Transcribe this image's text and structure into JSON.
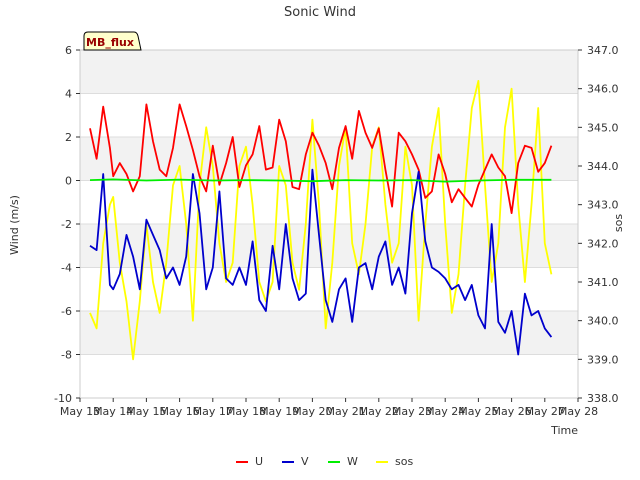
{
  "chart_data": {
    "type": "line",
    "title": "Sonic Wind",
    "badge": "MB_flux",
    "xlabel": "Time",
    "ylabel": "Wind (m/s)",
    "y2label": "sos",
    "ylim": [
      -10,
      6
    ],
    "y2lim": [
      338.0,
      347.0
    ],
    "xlim": [
      13,
      28
    ],
    "yticks": [
      -10,
      -8,
      -6,
      -4,
      -2,
      0,
      2,
      4,
      6
    ],
    "y2ticks": [
      "338.0",
      "339.0",
      "340.0",
      "341.0",
      "342.0",
      "343.0",
      "344.0",
      "345.0",
      "346.0",
      "347.0"
    ],
    "xticks": [
      {
        "v": 13,
        "label": "May 13"
      },
      {
        "v": 14,
        "label": "May 14"
      },
      {
        "v": 15,
        "label": "May 15"
      },
      {
        "v": 16,
        "label": "May 16"
      },
      {
        "v": 17,
        "label": "May 17"
      },
      {
        "v": 18,
        "label": "May 18"
      },
      {
        "v": 19,
        "label": "May 19"
      },
      {
        "v": 20,
        "label": "May 20"
      },
      {
        "v": 21,
        "label": "May 21"
      },
      {
        "v": 22,
        "label": "May 22"
      },
      {
        "v": 23,
        "label": "May 23"
      },
      {
        "v": 24,
        "label": "May 24"
      },
      {
        "v": 25,
        "label": "May 25"
      },
      {
        "v": 26,
        "label": "May 26"
      },
      {
        "v": 27,
        "label": "May 27"
      },
      {
        "v": 28,
        "label": "May 28"
      }
    ],
    "series": [
      {
        "name": "U",
        "color": "#ff0000",
        "axis": "left",
        "x": [
          13.3,
          13.5,
          13.7,
          13.9,
          14.0,
          14.2,
          14.4,
          14.6,
          14.8,
          15.0,
          15.2,
          15.4,
          15.6,
          15.8,
          16.0,
          16.2,
          16.4,
          16.6,
          16.8,
          17.0,
          17.2,
          17.4,
          17.6,
          17.8,
          18.0,
          18.2,
          18.4,
          18.6,
          18.8,
          19.0,
          19.2,
          19.4,
          19.6,
          19.8,
          20.0,
          20.2,
          20.4,
          20.6,
          20.8,
          21.0,
          21.2,
          21.4,
          21.6,
          21.8,
          22.0,
          22.2,
          22.4,
          22.6,
          22.8,
          23.0,
          23.2,
          23.4,
          23.6,
          23.8,
          24.0,
          24.2,
          24.4,
          24.6,
          24.8,
          25.0,
          25.2,
          25.4,
          25.6,
          25.8,
          26.0,
          26.2,
          26.4,
          26.6,
          26.8,
          27.0,
          27.2
        ],
        "y": [
          2.4,
          1.0,
          3.4,
          1.5,
          0.2,
          0.8,
          0.3,
          -0.5,
          0.2,
          3.5,
          1.8,
          0.5,
          0.2,
          1.5,
          3.5,
          2.5,
          1.4,
          0.2,
          -0.5,
          1.6,
          -0.2,
          0.8,
          2.0,
          -0.3,
          0.7,
          1.2,
          2.5,
          0.5,
          0.6,
          2.8,
          1.8,
          -0.3,
          -0.4,
          1.2,
          2.2,
          1.6,
          0.8,
          -0.4,
          1.5,
          2.5,
          1.0,
          3.2,
          2.2,
          1.5,
          2.4,
          0.5,
          -1.2,
          2.2,
          1.8,
          1.2,
          0.5,
          -0.8,
          -0.5,
          1.2,
          0.3,
          -1.0,
          -0.4,
          -0.8,
          -1.2,
          -0.2,
          0.5,
          1.2,
          0.6,
          0.2,
          -1.5,
          0.8,
          1.6,
          1.5,
          0.4,
          0.8,
          1.6
        ]
      },
      {
        "name": "V",
        "color": "#0000cc",
        "axis": "left",
        "x": [
          13.3,
          13.5,
          13.7,
          13.9,
          14.0,
          14.2,
          14.4,
          14.6,
          14.8,
          15.0,
          15.2,
          15.4,
          15.6,
          15.8,
          16.0,
          16.2,
          16.4,
          16.6,
          16.8,
          17.0,
          17.2,
          17.4,
          17.6,
          17.8,
          18.0,
          18.2,
          18.4,
          18.6,
          18.8,
          19.0,
          19.2,
          19.4,
          19.6,
          19.8,
          20.0,
          20.2,
          20.4,
          20.6,
          20.8,
          21.0,
          21.2,
          21.4,
          21.6,
          21.8,
          22.0,
          22.2,
          22.4,
          22.6,
          22.8,
          23.0,
          23.2,
          23.4,
          23.6,
          23.8,
          24.0,
          24.2,
          24.4,
          24.6,
          24.8,
          25.0,
          25.2,
          25.4,
          25.6,
          25.8,
          26.0,
          26.2,
          26.4,
          26.6,
          26.8,
          27.0,
          27.2
        ],
        "y": [
          -3.0,
          -3.2,
          0.3,
          -4.8,
          -5.0,
          -4.3,
          -2.5,
          -3.5,
          -5.0,
          -1.8,
          -2.5,
          -3.2,
          -4.5,
          -4.0,
          -4.8,
          -3.5,
          0.3,
          -1.5,
          -5.0,
          -4.0,
          -0.5,
          -4.5,
          -4.8,
          -4.0,
          -4.8,
          -2.8,
          -5.5,
          -6.0,
          -3.0,
          -5.0,
          -2.0,
          -4.5,
          -5.5,
          -5.2,
          0.5,
          -2.5,
          -5.5,
          -6.5,
          -5.0,
          -4.5,
          -6.5,
          -4.0,
          -3.8,
          -5.0,
          -3.5,
          -2.8,
          -4.8,
          -4.0,
          -5.2,
          -1.5,
          0.4,
          -2.8,
          -4.0,
          -4.2,
          -4.5,
          -5.0,
          -4.8,
          -5.5,
          -4.8,
          -6.2,
          -6.8,
          -2.0,
          -6.5,
          -7.0,
          -6.0,
          -8.0,
          -5.2,
          -6.2,
          -6.0,
          -6.8,
          -7.2
        ]
      },
      {
        "name": "W",
        "color": "#00ee00",
        "axis": "left",
        "x": [
          13.3,
          14.0,
          15.0,
          16.0,
          17.0,
          18.0,
          19.0,
          20.0,
          21.0,
          22.0,
          23.0,
          24.0,
          25.0,
          26.0,
          27.2
        ],
        "y": [
          0.02,
          0.05,
          0.0,
          0.04,
          0.0,
          0.02,
          0.0,
          -0.03,
          0.02,
          0.0,
          0.02,
          -0.05,
          0.0,
          0.03,
          0.03
        ]
      },
      {
        "name": "sos",
        "color": "#ffff00",
        "axis": "right",
        "x": [
          13.3,
          13.5,
          13.7,
          13.9,
          14.0,
          14.2,
          14.4,
          14.6,
          14.8,
          15.0,
          15.2,
          15.4,
          15.6,
          15.8,
          16.0,
          16.2,
          16.4,
          16.6,
          16.8,
          17.0,
          17.2,
          17.4,
          17.6,
          17.8,
          18.0,
          18.2,
          18.4,
          18.6,
          18.8,
          19.0,
          19.2,
          19.4,
          19.6,
          19.8,
          20.0,
          20.2,
          20.4,
          20.6,
          20.8,
          21.0,
          21.2,
          21.4,
          21.6,
          21.8,
          22.0,
          22.2,
          22.4,
          22.6,
          22.8,
          23.0,
          23.2,
          23.4,
          23.6,
          23.8,
          24.0,
          24.2,
          24.4,
          24.6,
          24.8,
          25.0,
          25.2,
          25.4,
          25.6,
          25.8,
          26.0,
          26.2,
          26.4,
          26.6,
          26.8,
          27.0,
          27.2
        ],
        "y": [
          340.2,
          339.8,
          342.0,
          343.0,
          343.2,
          341.5,
          340.5,
          339.0,
          340.5,
          342.5,
          341.0,
          340.2,
          341.5,
          343.5,
          344.0,
          342.5,
          340.0,
          343.5,
          345.0,
          344.0,
          342.0,
          341.0,
          341.5,
          344.0,
          344.5,
          343.0,
          341.0,
          340.5,
          341.0,
          344.0,
          343.5,
          341.5,
          340.8,
          342.5,
          345.2,
          343.0,
          339.8,
          341.5,
          344.0,
          345.0,
          342.0,
          341.2,
          342.5,
          344.5,
          345.0,
          343.0,
          341.5,
          342.0,
          344.5,
          343.5,
          340.0,
          342.5,
          344.5,
          345.5,
          342.5,
          340.2,
          341.2,
          343.5,
          345.5,
          346.2,
          343.5,
          341.0,
          342.0,
          345.0,
          346.0,
          343.0,
          341.0,
          343.0,
          345.5,
          342.0,
          341.2
        ]
      }
    ]
  }
}
